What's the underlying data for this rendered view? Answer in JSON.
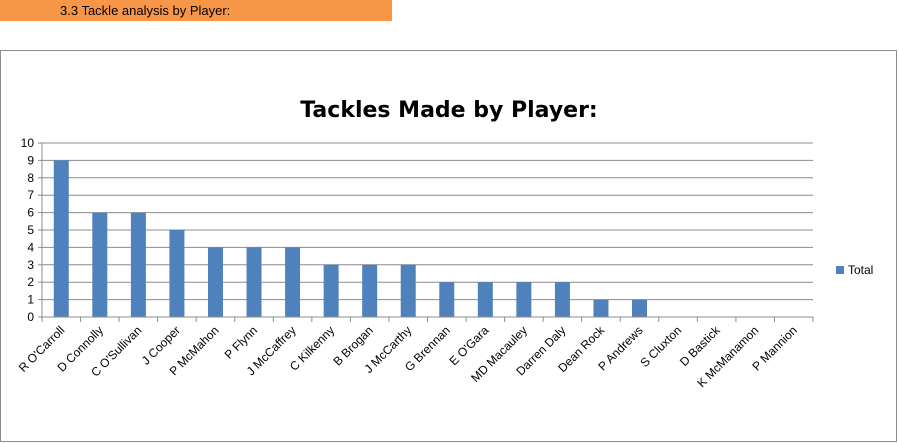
{
  "section": {
    "heading": "3.3 Tackle analysis by Player:"
  },
  "colors": {
    "banner": "#f79646",
    "bar": "#4f81bd",
    "grid": "#8c8c8c"
  },
  "chart_data": {
    "type": "bar",
    "title": "Tackles Made by Player:",
    "xlabel": "",
    "ylabel": "",
    "ylim": [
      0,
      10
    ],
    "yticks": [
      0,
      1,
      2,
      3,
      4,
      5,
      6,
      7,
      8,
      9,
      10
    ],
    "grid": true,
    "legend_position": "right",
    "categories": [
      "R O'Carroll",
      "D Connolly",
      "C O'Sullivan",
      "J Cooper",
      "P McMahon",
      "P Flynn",
      "J McCaffrey",
      "C Kilkenny",
      "B Brogan",
      "J McCarthy",
      "G Brennan",
      "E O'Gara",
      "MD Macauley",
      "Darren Daly",
      "Dean Rock",
      "P Andrews",
      "S Cluxton",
      "D Bastick",
      "K McManamon",
      "P Mannion"
    ],
    "series": [
      {
        "name": "Total",
        "values": [
          9,
          6,
          6,
          5,
          4,
          4,
          4,
          3,
          3,
          3,
          2,
          2,
          2,
          2,
          1,
          1,
          0,
          0,
          0,
          0
        ]
      }
    ]
  }
}
